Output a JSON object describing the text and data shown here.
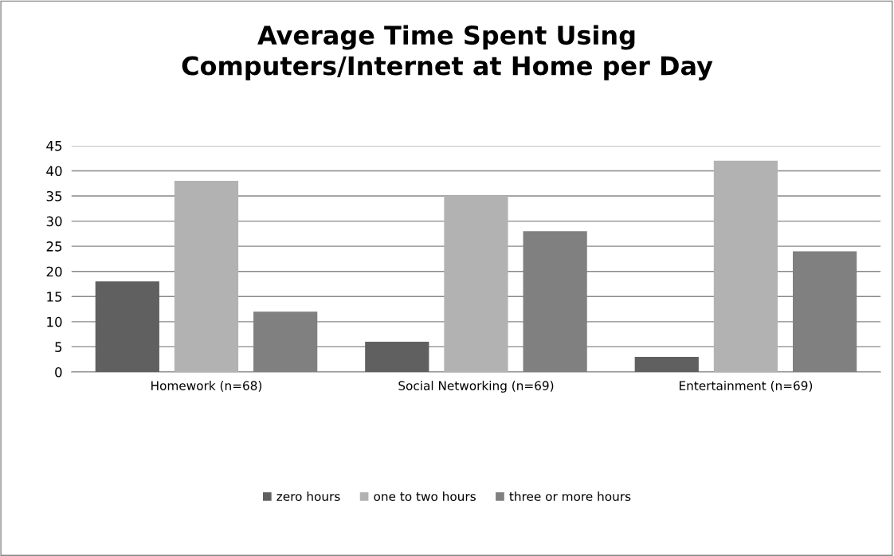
{
  "chart_data": {
    "type": "bar",
    "title": "Average Time Spent Using\nComputers/Internet at Home per Day",
    "categories": [
      "Homework (n=68)",
      "Social Networking (n=69)",
      "Entertainment (n=69)"
    ],
    "series": [
      {
        "name": "zero hours",
        "color": "#606060",
        "values": [
          18,
          6,
          3
        ]
      },
      {
        "name": "one to two hours",
        "color": "#b2b2b2",
        "values": [
          38,
          35,
          42
        ]
      },
      {
        "name": "three or more hours",
        "color": "#808080",
        "values": [
          12,
          28,
          24
        ]
      }
    ],
    "ylim": [
      0,
      45
    ],
    "yticks": [
      0,
      5,
      10,
      15,
      20,
      25,
      30,
      35,
      40,
      45
    ],
    "grid": "y",
    "legend": "bottom"
  }
}
